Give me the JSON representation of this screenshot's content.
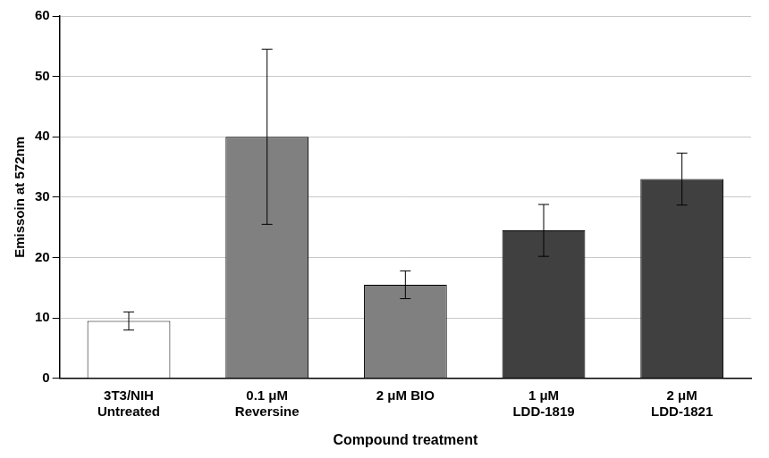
{
  "chart_data": {
    "type": "bar",
    "x_label": "Compound treatment",
    "y_label": "Emissoin at 572nm",
    "categories": [
      "3T3/NIH\nUntreated",
      "0.1 μM\nReversine",
      "2 μM BIO",
      "1 μM\nLDD-1819",
      "2 μM\nLDD-1821"
    ],
    "values": [
      9.5,
      40,
      15.5,
      24.5,
      33
    ],
    "errors": [
      1.5,
      14.5,
      2.3,
      4.3,
      4.3
    ],
    "colors": [
      "#ffffff",
      "#808080",
      "#808080",
      "#404040",
      "#404040"
    ],
    "ylim": [
      0,
      60
    ],
    "yticks": [
      0,
      10,
      20,
      30,
      40,
      50,
      60
    ],
    "grid": true
  }
}
